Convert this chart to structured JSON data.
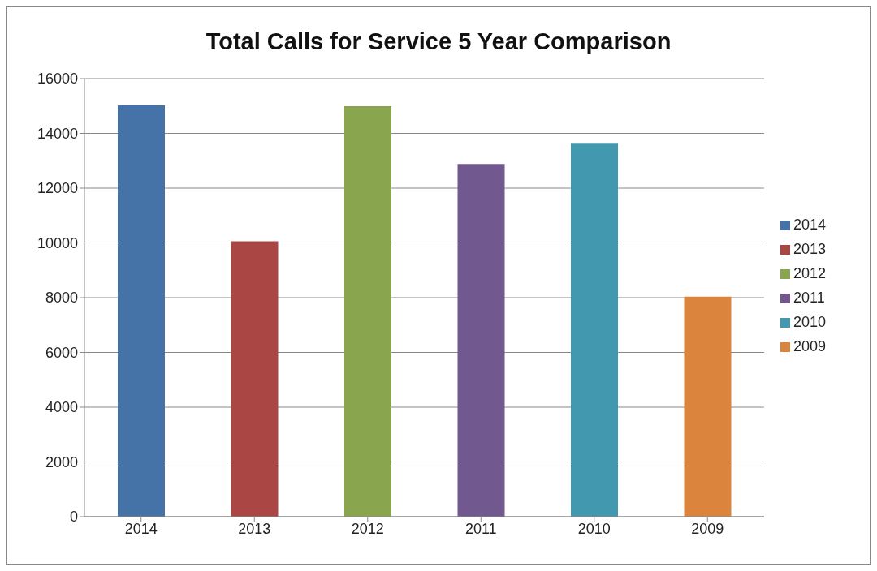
{
  "chart_data": {
    "type": "bar",
    "title": "Total Calls for Service 5 Year Comparison",
    "categories": [
      "2014",
      "2013",
      "2012",
      "2011",
      "2010",
      "2009"
    ],
    "series": [
      {
        "name": "2014",
        "color": "#4572a7",
        "values": [
          15030,
          null,
          null,
          null,
          null,
          null
        ]
      },
      {
        "name": "2013",
        "color": "#aa4643",
        "values": [
          null,
          10060,
          null,
          null,
          null,
          null
        ]
      },
      {
        "name": "2012",
        "color": "#89a54e",
        "values": [
          null,
          null,
          14990,
          null,
          null,
          null
        ]
      },
      {
        "name": "2011",
        "color": "#71588f",
        "values": [
          null,
          null,
          null,
          12880,
          null,
          null
        ]
      },
      {
        "name": "2010",
        "color": "#4198af",
        "values": [
          null,
          null,
          null,
          null,
          13650,
          null
        ]
      },
      {
        "name": "2009",
        "color": "#db843d",
        "values": [
          null,
          null,
          null,
          null,
          null,
          8040
        ]
      }
    ],
    "ylim": [
      0,
      16000
    ],
    "yticks": [
      0,
      2000,
      4000,
      6000,
      8000,
      10000,
      12000,
      14000,
      16000
    ],
    "grid": "y",
    "legend": "right"
  }
}
